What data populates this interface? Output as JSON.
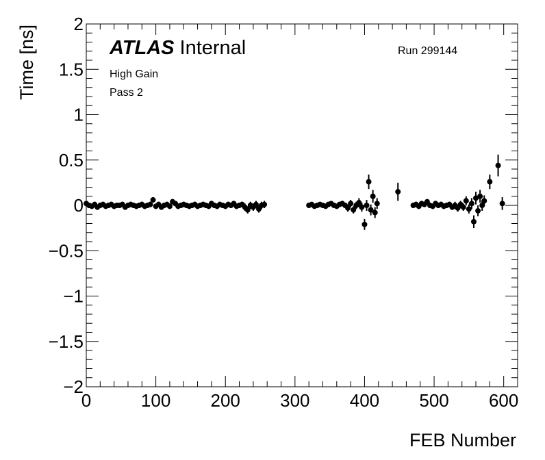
{
  "chart_data": {
    "type": "scatter",
    "xlabel": "FEB Number",
    "ylabel": "Time [ns]",
    "xlim": [
      0,
      620
    ],
    "ylim": [
      -2,
      2
    ],
    "x_ticks": [
      0,
      100,
      200,
      300,
      400,
      500,
      600
    ],
    "x_tick_labels": [
      "0",
      "100",
      "200",
      "300",
      "400",
      "500",
      "600"
    ],
    "y_ticks": [
      -2,
      -1.5,
      -1,
      -0.5,
      0,
      0.5,
      1,
      1.5,
      2
    ],
    "y_tick_labels": [
      "−2",
      "−1.5",
      "−1",
      "−0.5",
      "0",
      "0.5",
      "1",
      "1.5",
      "2"
    ],
    "grid": false,
    "marker_color": "#000000",
    "annotations": {
      "atlas": "ATLAS",
      "status": "Internal",
      "gain": "High Gain",
      "pass": "Pass 2",
      "run": "Run 299144"
    },
    "series": [
      {
        "points": [
          {
            "x": 0,
            "y": 0.02,
            "err": 0.03
          },
          {
            "x": 4,
            "y": 0.0,
            "err": 0.03
          },
          {
            "x": 8,
            "y": -0.01,
            "err": 0.03
          },
          {
            "x": 12,
            "y": 0.01,
            "err": 0.03
          },
          {
            "x": 16,
            "y": -0.02,
            "err": 0.03
          },
          {
            "x": 20,
            "y": 0.0,
            "err": 0.03
          },
          {
            "x": 24,
            "y": 0.01,
            "err": 0.03
          },
          {
            "x": 28,
            "y": -0.01,
            "err": 0.03
          },
          {
            "x": 32,
            "y": 0.0,
            "err": 0.03
          },
          {
            "x": 36,
            "y": 0.01,
            "err": 0.03
          },
          {
            "x": 40,
            "y": -0.01,
            "err": 0.03
          },
          {
            "x": 44,
            "y": 0.0,
            "err": 0.03
          },
          {
            "x": 48,
            "y": 0.0,
            "err": 0.03
          },
          {
            "x": 52,
            "y": 0.01,
            "err": 0.03
          },
          {
            "x": 56,
            "y": -0.02,
            "err": 0.03
          },
          {
            "x": 60,
            "y": 0.0,
            "err": 0.03
          },
          {
            "x": 64,
            "y": 0.01,
            "err": 0.03
          },
          {
            "x": 68,
            "y": 0.0,
            "err": 0.03
          },
          {
            "x": 72,
            "y": -0.01,
            "err": 0.03
          },
          {
            "x": 76,
            "y": 0.0,
            "err": 0.03
          },
          {
            "x": 80,
            "y": 0.01,
            "err": 0.03
          },
          {
            "x": 84,
            "y": -0.01,
            "err": 0.03
          },
          {
            "x": 88,
            "y": 0.0,
            "err": 0.03
          },
          {
            "x": 92,
            "y": 0.01,
            "err": 0.03
          },
          {
            "x": 96,
            "y": 0.06,
            "err": 0.03
          },
          {
            "x": 100,
            "y": -0.01,
            "err": 0.03
          },
          {
            "x": 104,
            "y": 0.01,
            "err": 0.03
          },
          {
            "x": 108,
            "y": -0.02,
            "err": 0.03
          },
          {
            "x": 112,
            "y": 0.0,
            "err": 0.03
          },
          {
            "x": 116,
            "y": 0.01,
            "err": 0.03
          },
          {
            "x": 120,
            "y": -0.01,
            "err": 0.03
          },
          {
            "x": 124,
            "y": 0.04,
            "err": 0.03
          },
          {
            "x": 128,
            "y": 0.02,
            "err": 0.03
          },
          {
            "x": 132,
            "y": -0.01,
            "err": 0.03
          },
          {
            "x": 136,
            "y": 0.0,
            "err": 0.03
          },
          {
            "x": 140,
            "y": 0.01,
            "err": 0.03
          },
          {
            "x": 144,
            "y": 0.0,
            "err": 0.03
          },
          {
            "x": 148,
            "y": -0.01,
            "err": 0.03
          },
          {
            "x": 152,
            "y": 0.0,
            "err": 0.03
          },
          {
            "x": 156,
            "y": 0.01,
            "err": 0.03
          },
          {
            "x": 160,
            "y": -0.01,
            "err": 0.03
          },
          {
            "x": 164,
            "y": 0.0,
            "err": 0.03
          },
          {
            "x": 168,
            "y": 0.01,
            "err": 0.03
          },
          {
            "x": 172,
            "y": 0.0,
            "err": 0.03
          },
          {
            "x": 176,
            "y": -0.01,
            "err": 0.03
          },
          {
            "x": 180,
            "y": 0.02,
            "err": 0.03
          },
          {
            "x": 184,
            "y": 0.0,
            "err": 0.03
          },
          {
            "x": 188,
            "y": -0.01,
            "err": 0.03
          },
          {
            "x": 192,
            "y": 0.01,
            "err": 0.03
          },
          {
            "x": 196,
            "y": 0.0,
            "err": 0.03
          },
          {
            "x": 200,
            "y": -0.01,
            "err": 0.03
          },
          {
            "x": 204,
            "y": 0.01,
            "err": 0.03
          },
          {
            "x": 208,
            "y": 0.0,
            "err": 0.03
          },
          {
            "x": 212,
            "y": 0.02,
            "err": 0.03
          },
          {
            "x": 216,
            "y": -0.01,
            "err": 0.03
          },
          {
            "x": 220,
            "y": 0.0,
            "err": 0.03
          },
          {
            "x": 224,
            "y": 0.01,
            "err": 0.03
          },
          {
            "x": 228,
            "y": -0.02,
            "err": 0.04
          },
          {
            "x": 232,
            "y": -0.05,
            "err": 0.04
          },
          {
            "x": 236,
            "y": 0.0,
            "err": 0.04
          },
          {
            "x": 240,
            "y": -0.02,
            "err": 0.04
          },
          {
            "x": 244,
            "y": 0.01,
            "err": 0.04
          },
          {
            "x": 248,
            "y": -0.04,
            "err": 0.04
          },
          {
            "x": 252,
            "y": 0.0,
            "err": 0.04
          },
          {
            "x": 256,
            "y": 0.01,
            "err": 0.04
          },
          {
            "x": 320,
            "y": 0.0,
            "err": 0.02
          },
          {
            "x": 324,
            "y": 0.01,
            "err": 0.02
          },
          {
            "x": 328,
            "y": -0.01,
            "err": 0.02
          },
          {
            "x": 332,
            "y": 0.0,
            "err": 0.02
          },
          {
            "x": 336,
            "y": 0.01,
            "err": 0.02
          },
          {
            "x": 340,
            "y": 0.0,
            "err": 0.02
          },
          {
            "x": 344,
            "y": -0.01,
            "err": 0.02
          },
          {
            "x": 348,
            "y": 0.01,
            "err": 0.02
          },
          {
            "x": 352,
            "y": 0.02,
            "err": 0.02
          },
          {
            "x": 356,
            "y": 0.0,
            "err": 0.02
          },
          {
            "x": 360,
            "y": -0.01,
            "err": 0.02
          },
          {
            "x": 364,
            "y": 0.01,
            "err": 0.02
          },
          {
            "x": 368,
            "y": 0.02,
            "err": 0.03
          },
          {
            "x": 372,
            "y": 0.0,
            "err": 0.03
          },
          {
            "x": 376,
            "y": -0.03,
            "err": 0.04
          },
          {
            "x": 380,
            "y": 0.02,
            "err": 0.04
          },
          {
            "x": 384,
            "y": -0.05,
            "err": 0.04
          },
          {
            "x": 388,
            "y": 0.0,
            "err": 0.04
          },
          {
            "x": 392,
            "y": 0.03,
            "err": 0.05
          },
          {
            "x": 396,
            "y": -0.02,
            "err": 0.05
          },
          {
            "x": 400,
            "y": -0.21,
            "err": 0.06
          },
          {
            "x": 403,
            "y": 0.0,
            "err": 0.06
          },
          {
            "x": 406,
            "y": 0.26,
            "err": 0.08
          },
          {
            "x": 409,
            "y": -0.05,
            "err": 0.06
          },
          {
            "x": 412,
            "y": 0.1,
            "err": 0.07
          },
          {
            "x": 415,
            "y": -0.08,
            "err": 0.06
          },
          {
            "x": 418,
            "y": 0.02,
            "err": 0.06
          },
          {
            "x": 448,
            "y": 0.15,
            "err": 0.1
          },
          {
            "x": 470,
            "y": 0.0,
            "err": 0.03
          },
          {
            "x": 474,
            "y": 0.01,
            "err": 0.03
          },
          {
            "x": 478,
            "y": -0.01,
            "err": 0.03
          },
          {
            "x": 482,
            "y": 0.02,
            "err": 0.03
          },
          {
            "x": 486,
            "y": 0.01,
            "err": 0.03
          },
          {
            "x": 490,
            "y": 0.04,
            "err": 0.03
          },
          {
            "x": 494,
            "y": 0.0,
            "err": 0.03
          },
          {
            "x": 498,
            "y": -0.01,
            "err": 0.03
          },
          {
            "x": 502,
            "y": 0.02,
            "err": 0.03
          },
          {
            "x": 506,
            "y": 0.0,
            "err": 0.03
          },
          {
            "x": 510,
            "y": 0.01,
            "err": 0.03
          },
          {
            "x": 514,
            "y": -0.01,
            "err": 0.03
          },
          {
            "x": 518,
            "y": 0.0,
            "err": 0.03
          },
          {
            "x": 522,
            "y": 0.01,
            "err": 0.03
          },
          {
            "x": 526,
            "y": -0.02,
            "err": 0.03
          },
          {
            "x": 530,
            "y": 0.0,
            "err": 0.04
          },
          {
            "x": 534,
            "y": -0.03,
            "err": 0.04
          },
          {
            "x": 538,
            "y": 0.01,
            "err": 0.04
          },
          {
            "x": 542,
            "y": -0.02,
            "err": 0.04
          },
          {
            "x": 546,
            "y": 0.05,
            "err": 0.05
          },
          {
            "x": 550,
            "y": -0.04,
            "err": 0.05
          },
          {
            "x": 554,
            "y": 0.02,
            "err": 0.06
          },
          {
            "x": 557,
            "y": -0.18,
            "err": 0.07
          },
          {
            "x": 560,
            "y": 0.08,
            "err": 0.07
          },
          {
            "x": 563,
            "y": -0.06,
            "err": 0.06
          },
          {
            "x": 566,
            "y": 0.1,
            "err": 0.07
          },
          {
            "x": 569,
            "y": 0.0,
            "err": 0.06
          },
          {
            "x": 572,
            "y": 0.05,
            "err": 0.06
          },
          {
            "x": 580,
            "y": 0.26,
            "err": 0.08
          },
          {
            "x": 592,
            "y": 0.44,
            "err": 0.12
          },
          {
            "x": 598,
            "y": 0.02,
            "err": 0.07
          }
        ]
      }
    ]
  }
}
